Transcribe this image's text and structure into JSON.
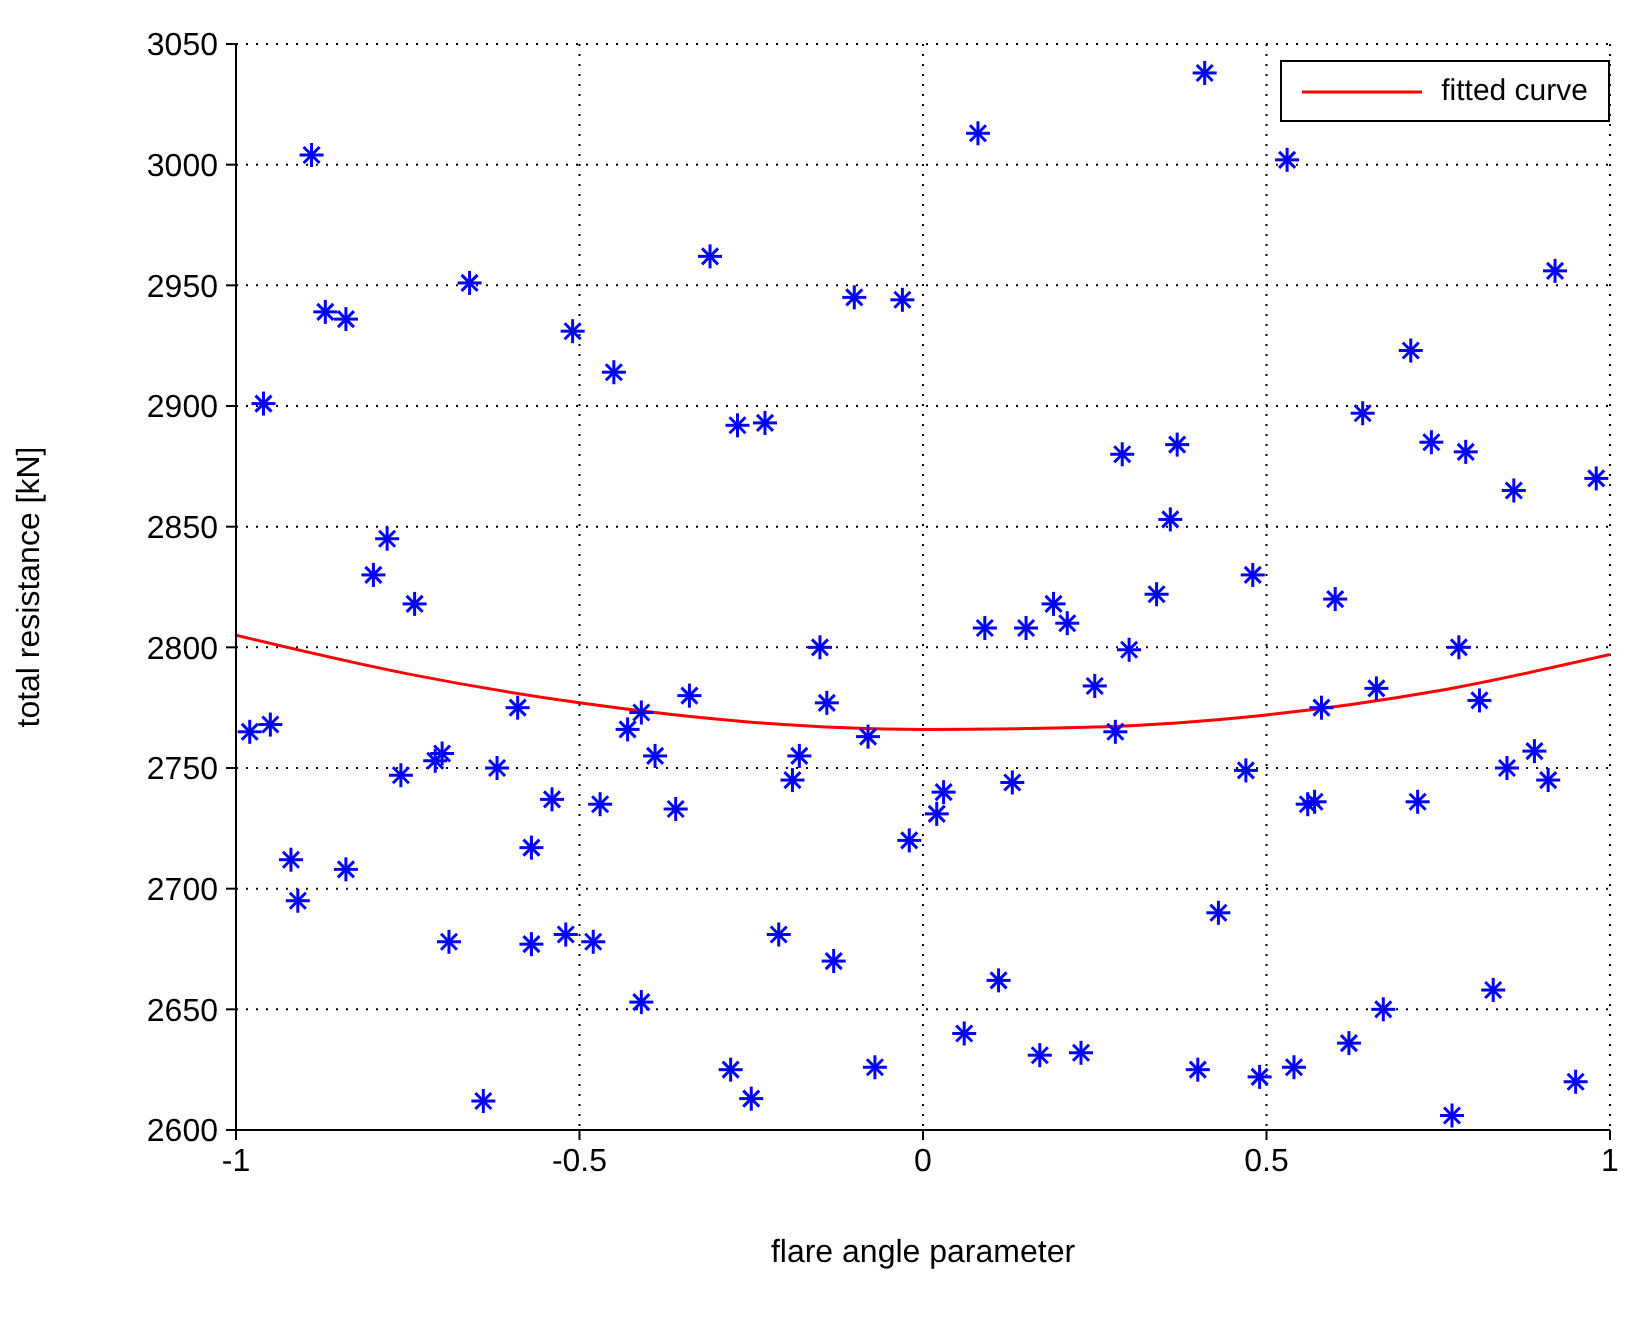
{
  "chart_data": {
    "type": "scatter",
    "xlabel": "flare angle parameter",
    "ylabel": "total resistance [kN]",
    "xlim": [
      -1,
      1
    ],
    "xticks": [
      -1,
      -0.5,
      0,
      0.5,
      1
    ],
    "ylim": [
      2600,
      3050
    ],
    "yticks": [
      2600,
      2650,
      2700,
      2750,
      2800,
      2850,
      2900,
      2950,
      3000,
      3050
    ],
    "grid": true,
    "legend": "top right",
    "series": [
      {
        "color": "#0000ff",
        "marker": "cross",
        "x": [
          -0.98,
          -0.95,
          -0.96,
          -0.92,
          -0.91,
          -0.89,
          -0.87,
          -0.84,
          -0.84,
          -0.8,
          -0.78,
          -0.76,
          -0.74,
          -0.71,
          -0.7,
          -0.69,
          -0.66,
          -0.64,
          -0.62,
          -0.59,
          -0.57,
          -0.57,
          -0.54,
          -0.52,
          -0.51,
          -0.48,
          -0.47,
          -0.45,
          -0.43,
          -0.41,
          -0.41,
          -0.39,
          -0.36,
          -0.34,
          -0.31,
          -0.28,
          -0.27,
          -0.25,
          -0.23,
          -0.21,
          -0.19,
          -0.18,
          -0.15,
          -0.14,
          -0.13,
          -0.1,
          -0.08,
          -0.07,
          -0.03,
          -0.02,
          0.02,
          0.03,
          0.06,
          0.08,
          0.09,
          0.11,
          0.13,
          0.15,
          0.17,
          0.19,
          0.21,
          0.23,
          0.25,
          0.28,
          0.29,
          0.3,
          0.34,
          0.36,
          0.37,
          0.4,
          0.41,
          0.43,
          0.47,
          0.48,
          0.49,
          0.53,
          0.54,
          0.56,
          0.57,
          0.58,
          0.6,
          0.62,
          0.64,
          0.66,
          0.67,
          0.71,
          0.72,
          0.74,
          0.77,
          0.78,
          0.79,
          0.81,
          0.83,
          0.85,
          0.86,
          0.89,
          0.91,
          0.92,
          0.95,
          0.98
        ],
        "values": [
          2765,
          2768,
          2901,
          2712,
          2695,
          3004,
          2939,
          2936,
          2708,
          2830,
          2845,
          2747,
          2818,
          2753,
          2756,
          2678,
          2951,
          2612,
          2750,
          2775,
          2677,
          2717,
          2737,
          2681,
          2931,
          2678,
          2735,
          2914,
          2766,
          2773,
          2653,
          2755,
          2733,
          2780,
          2962,
          2625,
          2892,
          2613,
          2893,
          2681,
          2745,
          2755,
          2800,
          2777,
          2670,
          2945,
          2763,
          2626,
          2944,
          2720,
          2731,
          2740,
          2640,
          3013,
          2808,
          2662,
          2744,
          2808,
          2631,
          2818,
          2810,
          2632,
          2784,
          2765,
          2880,
          2799,
          2822,
          2853,
          2884,
          2625,
          3038,
          2690,
          2749,
          2830,
          2622,
          3002,
          2626,
          2735,
          2736,
          2775,
          2820,
          2636,
          2897,
          2783,
          2650,
          2923,
          2736,
          2885,
          2606,
          2800,
          2881,
          2778,
          2658,
          2750,
          2865,
          2757,
          2745,
          2956,
          2620,
          2870
        ]
      },
      {
        "type": "line",
        "name": "fitted curve",
        "color": "#ff0000",
        "marker": "none",
        "line_style": "solid",
        "x": [
          -1,
          -0.75,
          -0.5,
          -0.25,
          0,
          0.25,
          0.5,
          0.75,
          1
        ],
        "values": [
          2805,
          2789,
          2777,
          2769,
          2766,
          2767,
          2772,
          2782,
          2797
        ]
      }
    ]
  }
}
